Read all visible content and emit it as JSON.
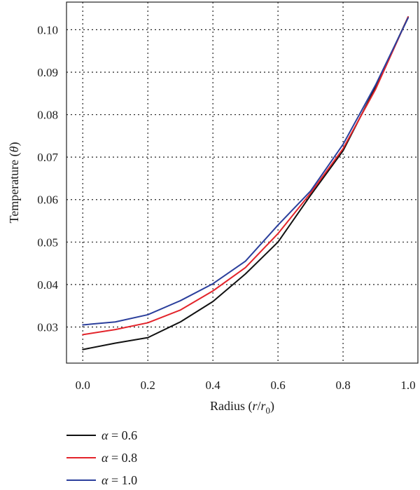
{
  "chart_data": {
    "type": "line",
    "xlabel": "Radius (r/r0)",
    "xlabel_parts": {
      "prefix": "Radius (",
      "var": "r",
      "slash": "/",
      "var2": "r",
      "sub": "0",
      "suffix": ")"
    },
    "ylabel": "Temperature (θ)",
    "ylabel_parts": {
      "prefix": "Temperature (",
      "var": "θ",
      "suffix": ")"
    },
    "xlim": [
      -0.05,
      1.03
    ],
    "ylim": [
      0.0215,
      0.1065
    ],
    "x_ticks": [
      0.0,
      0.2,
      0.4,
      0.6,
      0.8,
      1.0
    ],
    "x_tick_labels": [
      "0.0",
      "0.2",
      "0.4",
      "0.6",
      "0.8",
      "1.0"
    ],
    "y_ticks": [
      0.03,
      0.04,
      0.05,
      0.06,
      0.07,
      0.08,
      0.09,
      0.1
    ],
    "y_tick_labels": [
      "0.03",
      "0.04",
      "0.05",
      "0.06",
      "0.07",
      "0.08",
      "0.09",
      "0.10"
    ],
    "x_grid": [
      0.0,
      0.2,
      0.4,
      0.6,
      0.8
    ],
    "y_grid": [
      0.03,
      0.04,
      0.05,
      0.06,
      0.07,
      0.08,
      0.09,
      0.1
    ],
    "grid": true,
    "legend_position": "bottom-left, below plot",
    "x": [
      0.0,
      0.1,
      0.2,
      0.3,
      0.4,
      0.5,
      0.6,
      0.7,
      0.8,
      0.9,
      1.0
    ],
    "series": [
      {
        "name": "α = 0.6",
        "legend_var": "α",
        "legend_rest": " = 0.6",
        "color": "#111111",
        "values": [
          0.0247,
          0.0262,
          0.0275,
          0.0312,
          0.036,
          0.0425,
          0.05,
          0.061,
          0.0715,
          0.0865,
          0.103
        ]
      },
      {
        "name": "α = 0.8",
        "legend_var": "α",
        "legend_rest": " = 0.8",
        "color": "#e3242b",
        "values": [
          0.0282,
          0.0294,
          0.031,
          0.034,
          0.0385,
          0.044,
          0.052,
          0.0615,
          0.072,
          0.086,
          0.103
        ]
      },
      {
        "name": "α = 1.0",
        "legend_var": "α",
        "legend_rest": " = 1.0",
        "color": "#2b3f9c",
        "values": [
          0.0305,
          0.0312,
          0.0329,
          0.0362,
          0.0402,
          0.0455,
          0.054,
          0.062,
          0.073,
          0.087,
          0.1028
        ]
      }
    ]
  }
}
